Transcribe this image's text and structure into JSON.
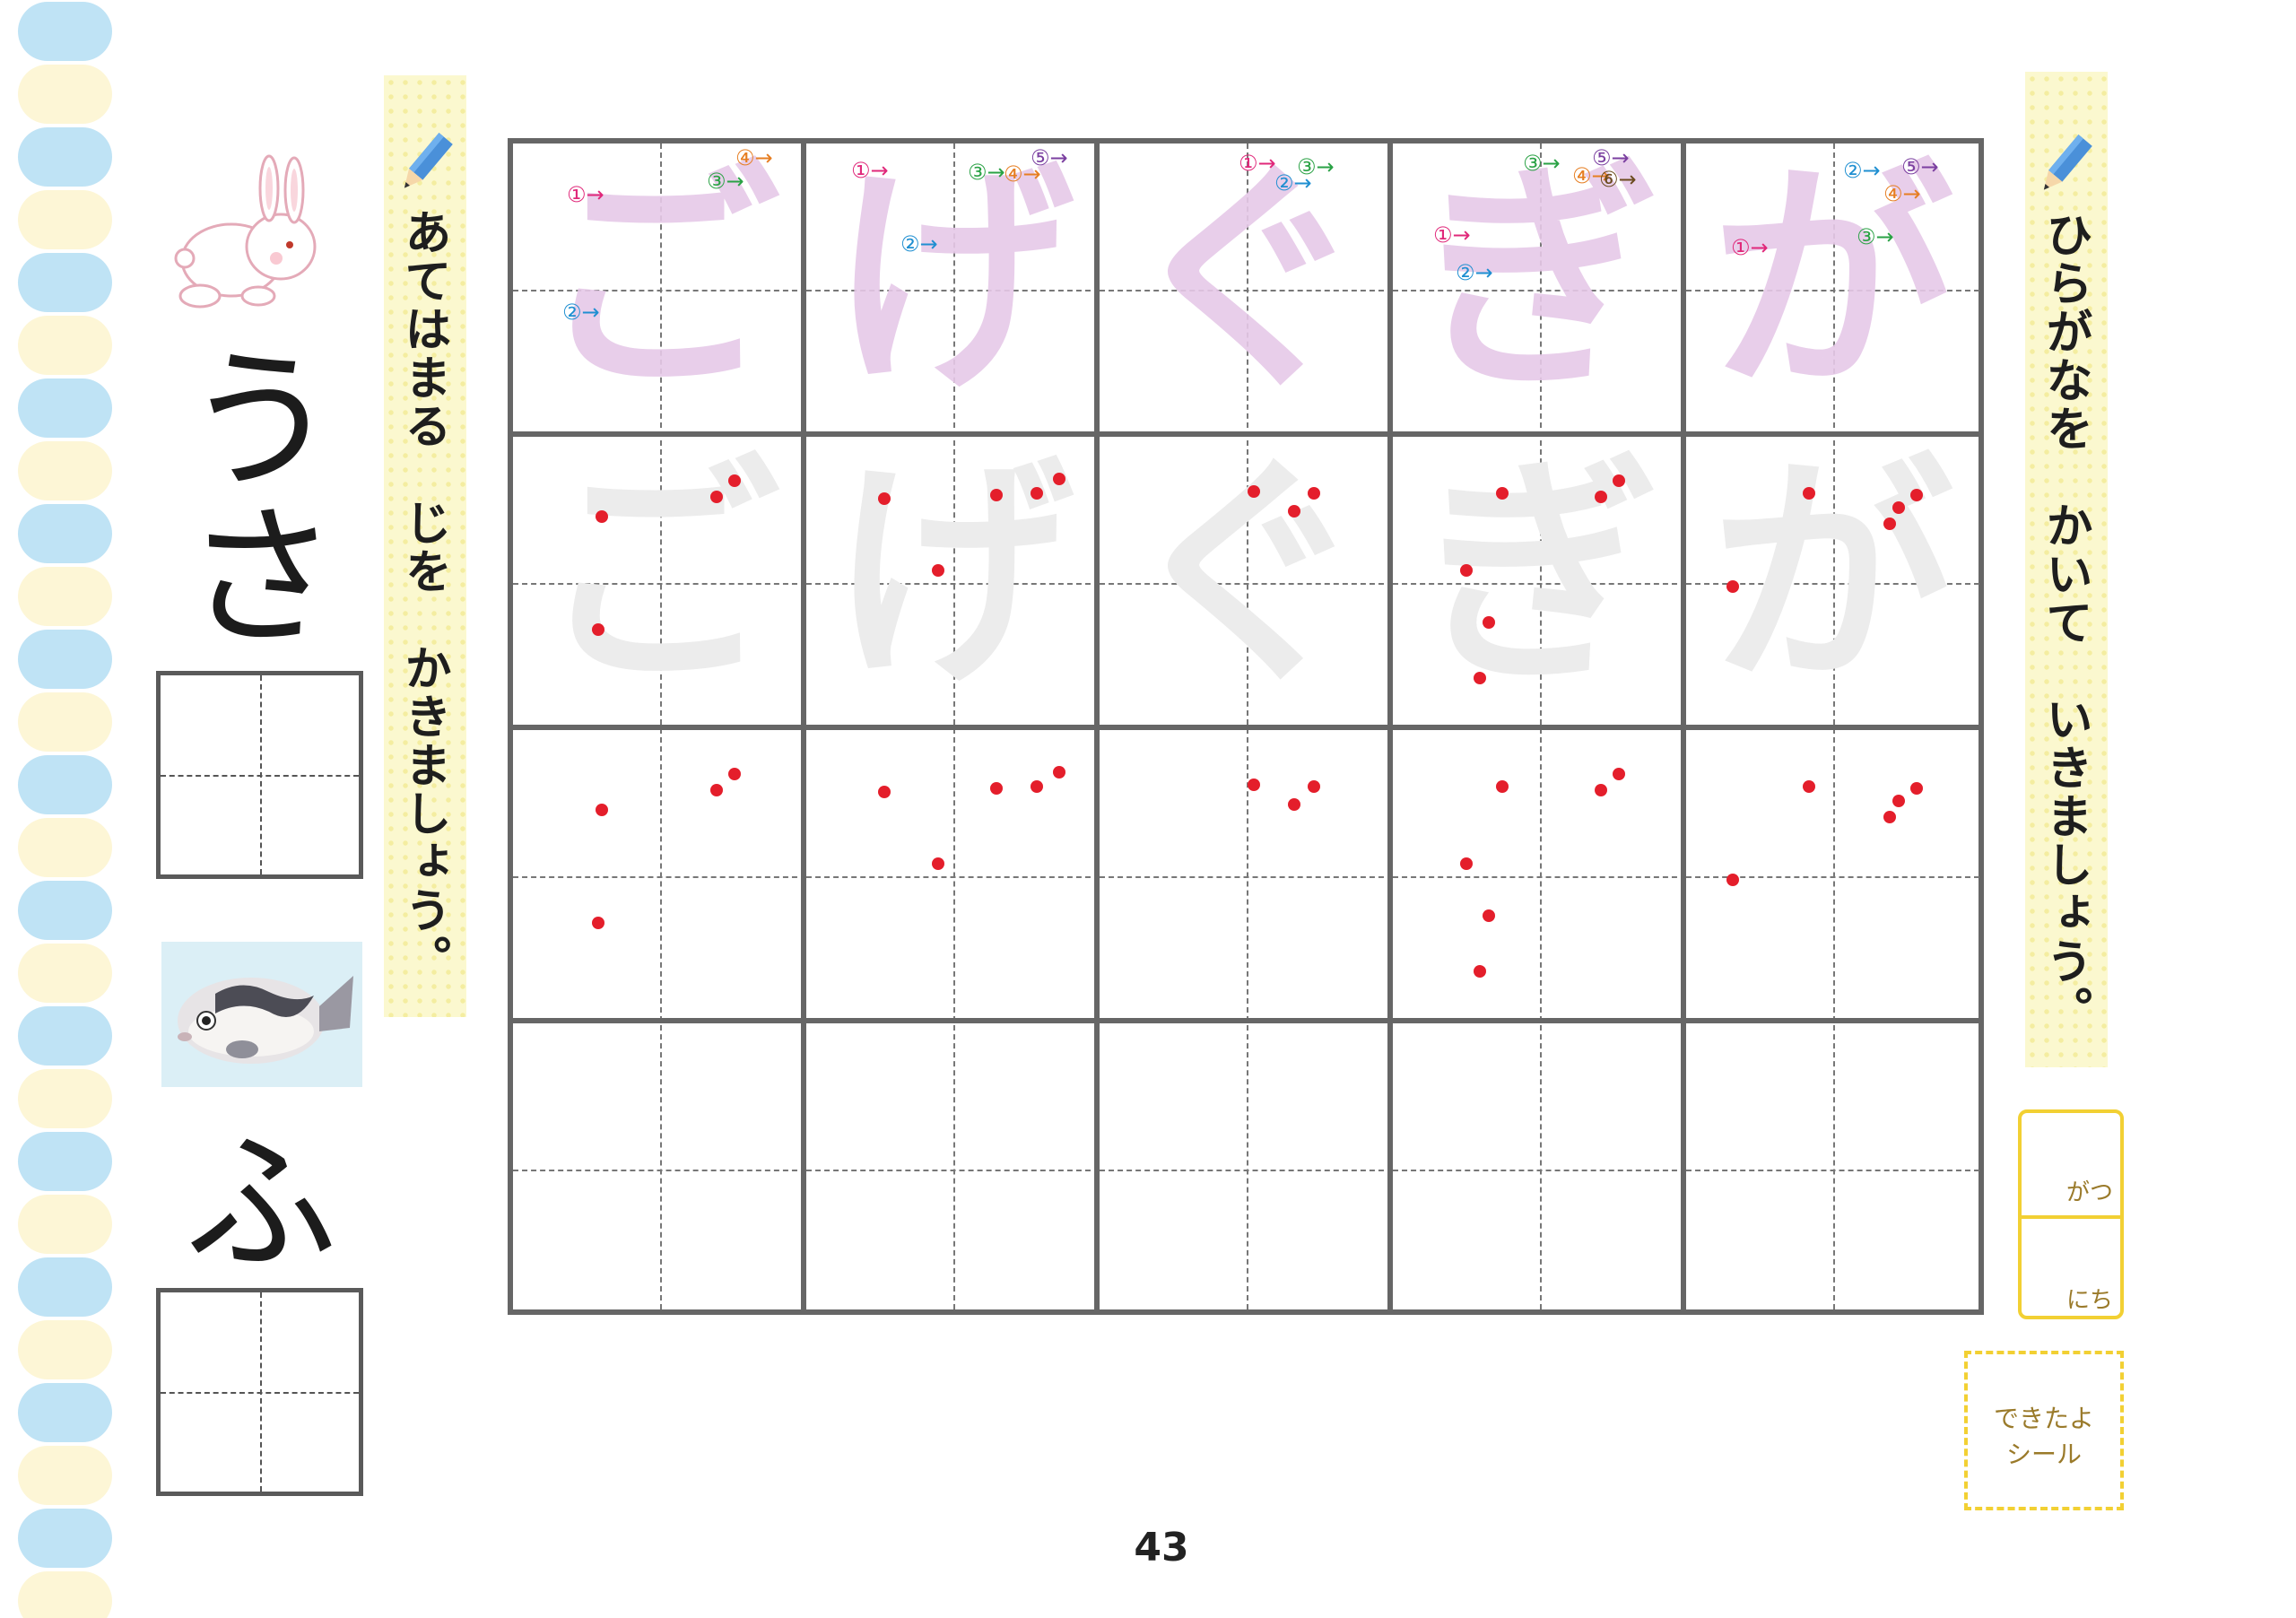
{
  "colors": {
    "stripe_blue": "#bfe3f5",
    "stripe_cream": "#fdf6d6",
    "banner_yellow": "#fbf8cf",
    "grid_line": "#666666",
    "guide_dot": "#e41e2b",
    "date_border": "#f2d033"
  },
  "instructions": {
    "left": "あてはまる　じを　かきましょう。",
    "right": "ひらがなを　かいて　いきましょう。"
  },
  "left_column": {
    "picture1_icon": "rabbit-illustration",
    "word1": [
      "う",
      "さ"
    ],
    "picture2_icon": "pufferfish-illustration",
    "word2": [
      "ふ"
    ]
  },
  "practice": {
    "characters": [
      "ご",
      "げ",
      "ぐ",
      "ぎ",
      "が"
    ],
    "stroke_labels": [
      [
        "①",
        "②",
        "③",
        "④"
      ],
      [
        "①",
        "②",
        "③",
        "④",
        "⑤"
      ],
      [
        "①",
        "②",
        "③"
      ],
      [
        "①",
        "②",
        "③",
        "④",
        "⑤",
        "⑥"
      ],
      [
        "①",
        "②",
        "③",
        "④",
        "⑤"
      ]
    ]
  },
  "page_number": "43",
  "date_box": {
    "month_label": "がつ",
    "day_label": "にち"
  },
  "sticker": {
    "line1": "できたよ",
    "line2": "シール"
  }
}
